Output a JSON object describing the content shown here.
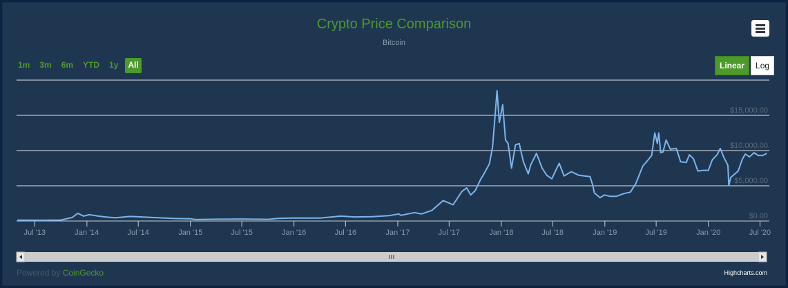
{
  "header": {
    "title": "Crypto Price Comparison",
    "subtitle": "Bitcoin",
    "menu_icon": "hamburger-menu-icon"
  },
  "range_selector": {
    "buttons": [
      "1m",
      "3m",
      "6m",
      "YTD",
      "1y",
      "All"
    ],
    "active": "All"
  },
  "scale_toggle": {
    "linear_label": "Linear",
    "log_label": "Log",
    "active": "Linear"
  },
  "footer": {
    "powered_prefix": "Powered by ",
    "powered_brand": "CoinGecko",
    "highcharts": "Highcharts.com"
  },
  "colors": {
    "line": "#7cb5ec",
    "accent": "#4c9a2a",
    "background": "#1f3651"
  },
  "chart_data": {
    "type": "line",
    "title": "Crypto Price Comparison",
    "subtitle": "Bitcoin",
    "x_ticks": [
      "Jul '13",
      "Jan '14",
      "Jul '14",
      "Jan '15",
      "Jul '15",
      "Jan '16",
      "Jul '16",
      "Jan '17",
      "Jul '17",
      "Jan '18",
      "Jul '18",
      "Jan '19",
      "Jul '19",
      "Jan '20",
      "Jul '20"
    ],
    "y_ticks": [
      "$0.00",
      "$5,000.00",
      "$10,000.00",
      "$15,000.00"
    ],
    "ylim": [
      0,
      20000
    ],
    "grid": true,
    "series": [
      {
        "x": [
          "2013-05-01",
          "2013-08-01",
          "2013-10-01",
          "2013-11-10",
          "2013-11-30",
          "2013-12-10",
          "2013-12-20",
          "2014-01-10",
          "2014-02-10",
          "2014-03-01",
          "2014-04-10",
          "2014-06-01",
          "2014-07-01",
          "2014-09-15",
          "2014-11-01",
          "2015-01-01",
          "2015-01-20",
          "2015-04-01",
          "2015-07-01",
          "2015-10-01",
          "2015-11-05",
          "2016-01-01",
          "2016-04-01",
          "2016-06-15",
          "2016-08-01",
          "2016-10-01",
          "2016-12-01",
          "2017-01-05",
          "2017-01-12",
          "2017-03-01",
          "2017-03-25",
          "2017-05-01",
          "2017-06-10",
          "2017-07-15",
          "2017-08-15",
          "2017-09-01",
          "2017-09-15",
          "2017-10-01",
          "2017-10-20",
          "2017-11-01",
          "2017-11-20",
          "2017-12-01",
          "2017-12-10",
          "2017-12-17",
          "2017-12-25",
          "2018-01-06",
          "2018-01-16",
          "2018-01-25",
          "2018-02-06",
          "2018-02-20",
          "2018-03-05",
          "2018-03-20",
          "2018-04-06",
          "2018-04-15",
          "2018-05-05",
          "2018-05-25",
          "2018-06-10",
          "2018-06-28",
          "2018-07-24",
          "2018-08-10",
          "2018-09-05",
          "2018-10-01",
          "2018-11-10",
          "2018-11-20",
          "2018-11-25",
          "2018-12-15",
          "2018-12-30",
          "2019-01-20",
          "2019-02-10",
          "2019-03-10",
          "2019-04-01",
          "2019-04-20",
          "2019-05-15",
          "2019-06-01",
          "2019-06-15",
          "2019-06-26",
          "2019-07-05",
          "2019-07-10",
          "2019-07-17",
          "2019-07-25",
          "2019-08-05",
          "2019-08-20",
          "2019-09-10",
          "2019-09-25",
          "2019-10-15",
          "2019-10-26",
          "2019-11-10",
          "2019-11-25",
          "2019-12-15",
          "2020-01-01",
          "2020-01-15",
          "2020-02-01",
          "2020-02-12",
          "2020-02-25",
          "2020-03-10",
          "2020-03-13",
          "2020-03-20",
          "2020-04-01",
          "2020-04-15",
          "2020-04-30",
          "2020-05-10",
          "2020-05-25",
          "2020-06-10",
          "2020-06-25",
          "2020-07-10",
          "2020-07-25"
        ],
        "y": [
          130,
          110,
          140,
          500,
          1100,
          900,
          700,
          900,
          700,
          600,
          450,
          650,
          600,
          450,
          360,
          320,
          210,
          250,
          280,
          240,
          370,
          430,
          420,
          700,
          580,
          620,
          760,
          1000,
          800,
          1200,
          1000,
          1500,
          2900,
          2300,
          4200,
          4700,
          3700,
          4300,
          5900,
          6700,
          8100,
          10500,
          15000,
          18500,
          14000,
          16500,
          11500,
          11000,
          7500,
          10800,
          11000,
          8400,
          6700,
          8000,
          9600,
          7500,
          6500,
          6000,
          8200,
          6400,
          7000,
          6500,
          6300,
          5000,
          4000,
          3300,
          3700,
          3500,
          3500,
          3900,
          4100,
          5300,
          7800,
          8600,
          9300,
          12500,
          11000,
          12500,
          9700,
          9800,
          11500,
          10200,
          10300,
          8400,
          8300,
          9400,
          8800,
          7100,
          7200,
          7200,
          8700,
          9400,
          10300,
          9000,
          7900,
          5000,
          6200,
          6600,
          7100,
          8800,
          9500,
          9100,
          9700,
          9300,
          9300,
          9600
        ]
      }
    ]
  }
}
